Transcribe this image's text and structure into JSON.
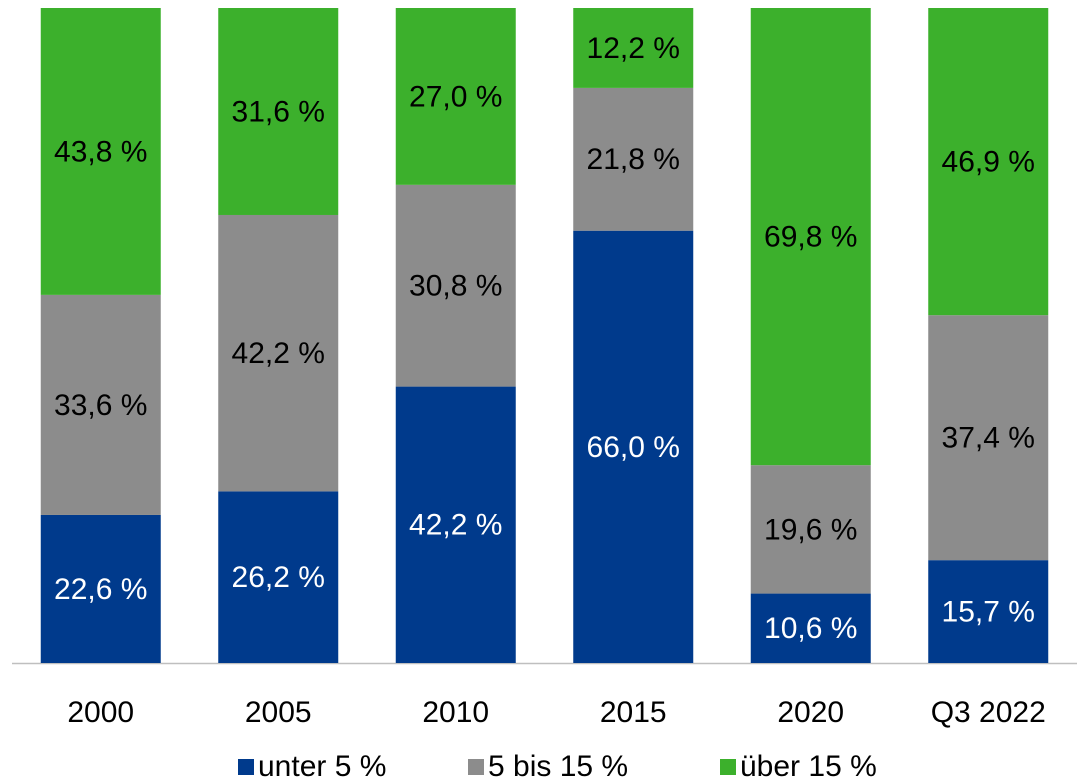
{
  "chart_data": {
    "type": "stacked_bar",
    "categories": [
      "2000",
      "2005",
      "2010",
      "2015",
      "2020",
      "Q3 2022"
    ],
    "series": [
      {
        "name": "unter 5 %",
        "color": "#003a8c",
        "label_color": "#ffffff",
        "values": [
          22.6,
          26.2,
          42.2,
          66.0,
          10.6,
          15.7
        ],
        "value_labels": [
          "22,6 %",
          "26,2 %",
          "42,2 %",
          "66,0 %",
          "10,6 %",
          "15,7 %"
        ]
      },
      {
        "name": "5 bis 15 %",
        "color": "#8c8c8c",
        "label_color": "#000000",
        "values": [
          33.6,
          42.2,
          30.8,
          21.8,
          19.6,
          37.4
        ],
        "value_labels": [
          "33,6 %",
          "42,2 %",
          "30,8 %",
          "21,8 %",
          "19,6 %",
          "37,4 %"
        ]
      },
      {
        "name": "über 15 %",
        "color": "#3cb02c",
        "label_color": "#000000",
        "values": [
          43.8,
          31.6,
          27.0,
          12.2,
          69.8,
          46.9
        ],
        "value_labels": [
          "43,8 %",
          "31,6 %",
          "27,0 %",
          "12,2 %",
          "69,8 %",
          "46,9 %"
        ]
      }
    ],
    "legend": "bottom"
  }
}
